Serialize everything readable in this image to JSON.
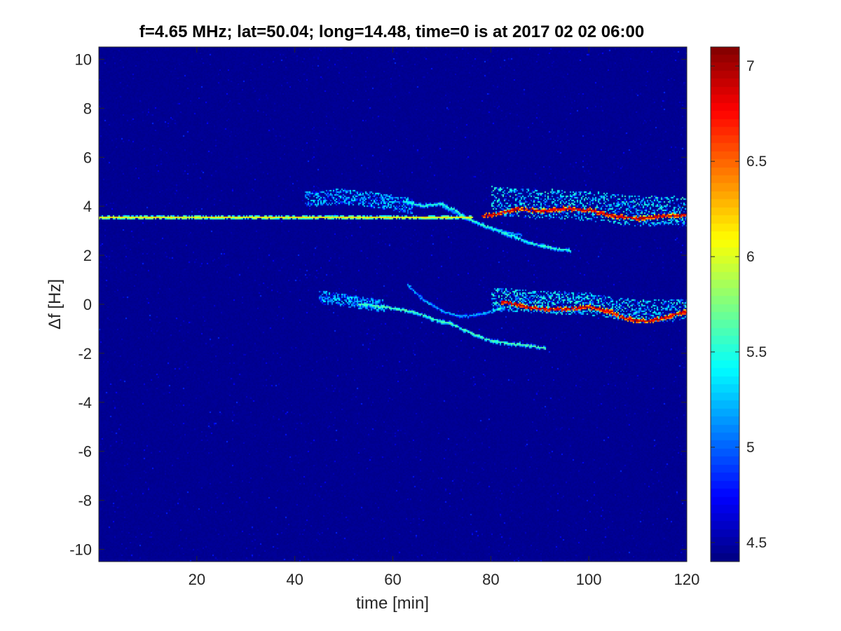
{
  "chart_data": {
    "type": "heatmap",
    "title": "f=4.65 MHz;  lat=50.04; long=14.48, time=0 is at 2017 02 02 06:00",
    "xlabel": "time [min]",
    "ylabel": "Δf [Hz]",
    "xlim": [
      0,
      120
    ],
    "ylim": [
      -10.5,
      10.5
    ],
    "x_ticks": [
      20,
      40,
      60,
      80,
      100,
      120
    ],
    "y_ticks": [
      -10,
      -8,
      -6,
      -4,
      -2,
      0,
      2,
      4,
      6,
      8,
      10
    ],
    "colormap": "jet",
    "colorbar": {
      "range": [
        4.4,
        7.1
      ],
      "ticks": [
        4.5,
        5,
        5.5,
        6,
        6.5,
        7
      ],
      "tick_labels": [
        "4.5",
        "5",
        "5.5",
        "6",
        "6.5",
        "7"
      ]
    },
    "background_value": 4.45,
    "grid": false,
    "traces": [
      {
        "label": "carrier line",
        "points": [
          [
            0,
            3.55
          ],
          [
            76,
            3.55
          ]
        ],
        "value": 6.2,
        "spread": 0.05
      },
      {
        "label": "upper doppler trace",
        "points": [
          [
            78,
            3.6
          ],
          [
            82,
            3.7
          ],
          [
            85,
            3.9
          ],
          [
            90,
            3.8
          ],
          [
            95,
            3.9
          ],
          [
            100,
            3.85
          ],
          [
            105,
            3.6
          ],
          [
            110,
            3.5
          ],
          [
            115,
            3.6
          ],
          [
            120,
            3.65
          ]
        ],
        "value": 7.0,
        "spread": 0.08
      },
      {
        "label": "upper scatter band",
        "points": [
          [
            80,
            4.2
          ],
          [
            90,
            4.1
          ],
          [
            100,
            4.0
          ],
          [
            110,
            3.8
          ],
          [
            120,
            3.8
          ]
        ],
        "value": 5.0,
        "spread": 0.6
      },
      {
        "label": "upper branch 1",
        "points": [
          [
            62,
            4.2
          ],
          [
            66,
            4.0
          ],
          [
            70,
            4.1
          ],
          [
            73,
            3.8
          ],
          [
            76,
            3.4
          ],
          [
            80,
            3.1
          ],
          [
            84,
            2.8
          ],
          [
            88,
            2.5
          ],
          [
            92,
            2.3
          ],
          [
            96,
            2.2
          ]
        ],
        "value": 5.6,
        "spread": 0.07
      },
      {
        "label": "upper branch 2",
        "points": [
          [
            70,
            4.0
          ],
          [
            74,
            3.6
          ],
          [
            78,
            3.2
          ],
          [
            82,
            3.0
          ],
          [
            86,
            2.8
          ]
        ],
        "value": 5.3,
        "spread": 0.06
      },
      {
        "label": "upper diffuse patch",
        "points": [
          [
            42,
            4.3
          ],
          [
            50,
            4.4
          ],
          [
            58,
            4.2
          ],
          [
            64,
            4.0
          ]
        ],
        "value": 4.8,
        "spread": 0.3
      },
      {
        "label": "lower doppler trace",
        "points": [
          [
            82,
            0.1
          ],
          [
            85,
            0.0
          ],
          [
            90,
            -0.2
          ],
          [
            95,
            -0.2
          ],
          [
            100,
            -0.1
          ],
          [
            104,
            -0.3
          ],
          [
            108,
            -0.6
          ],
          [
            112,
            -0.7
          ],
          [
            116,
            -0.5
          ],
          [
            120,
            -0.3
          ]
        ],
        "value": 7.0,
        "spread": 0.08
      },
      {
        "label": "lower scatter band",
        "points": [
          [
            80,
            0.2
          ],
          [
            90,
            0.1
          ],
          [
            100,
            0.0
          ],
          [
            110,
            -0.3
          ],
          [
            120,
            -0.2
          ]
        ],
        "value": 5.0,
        "spread": 0.45
      },
      {
        "label": "lower branch 1",
        "points": [
          [
            53,
            0.0
          ],
          [
            58,
            -0.1
          ],
          [
            64,
            -0.3
          ],
          [
            68,
            -0.6
          ],
          [
            72,
            -0.8
          ],
          [
            76,
            -1.2
          ],
          [
            80,
            -1.5
          ],
          [
            84,
            -1.6
          ],
          [
            88,
            -1.7
          ],
          [
            91,
            -1.8
          ]
        ],
        "value": 5.7,
        "spread": 0.06
      },
      {
        "label": "lower branch 2",
        "points": [
          [
            63,
            0.8
          ],
          [
            66,
            0.2
          ],
          [
            70,
            -0.3
          ],
          [
            74,
            -0.5
          ],
          [
            78,
            -0.4
          ],
          [
            82,
            -0.2
          ]
        ],
        "value": 5.3,
        "spread": 0.06
      },
      {
        "label": "lower diffuse patch",
        "points": [
          [
            45,
            0.3
          ],
          [
            52,
            0.1
          ],
          [
            58,
            -0.1
          ]
        ],
        "value": 4.8,
        "spread": 0.25
      }
    ]
  }
}
